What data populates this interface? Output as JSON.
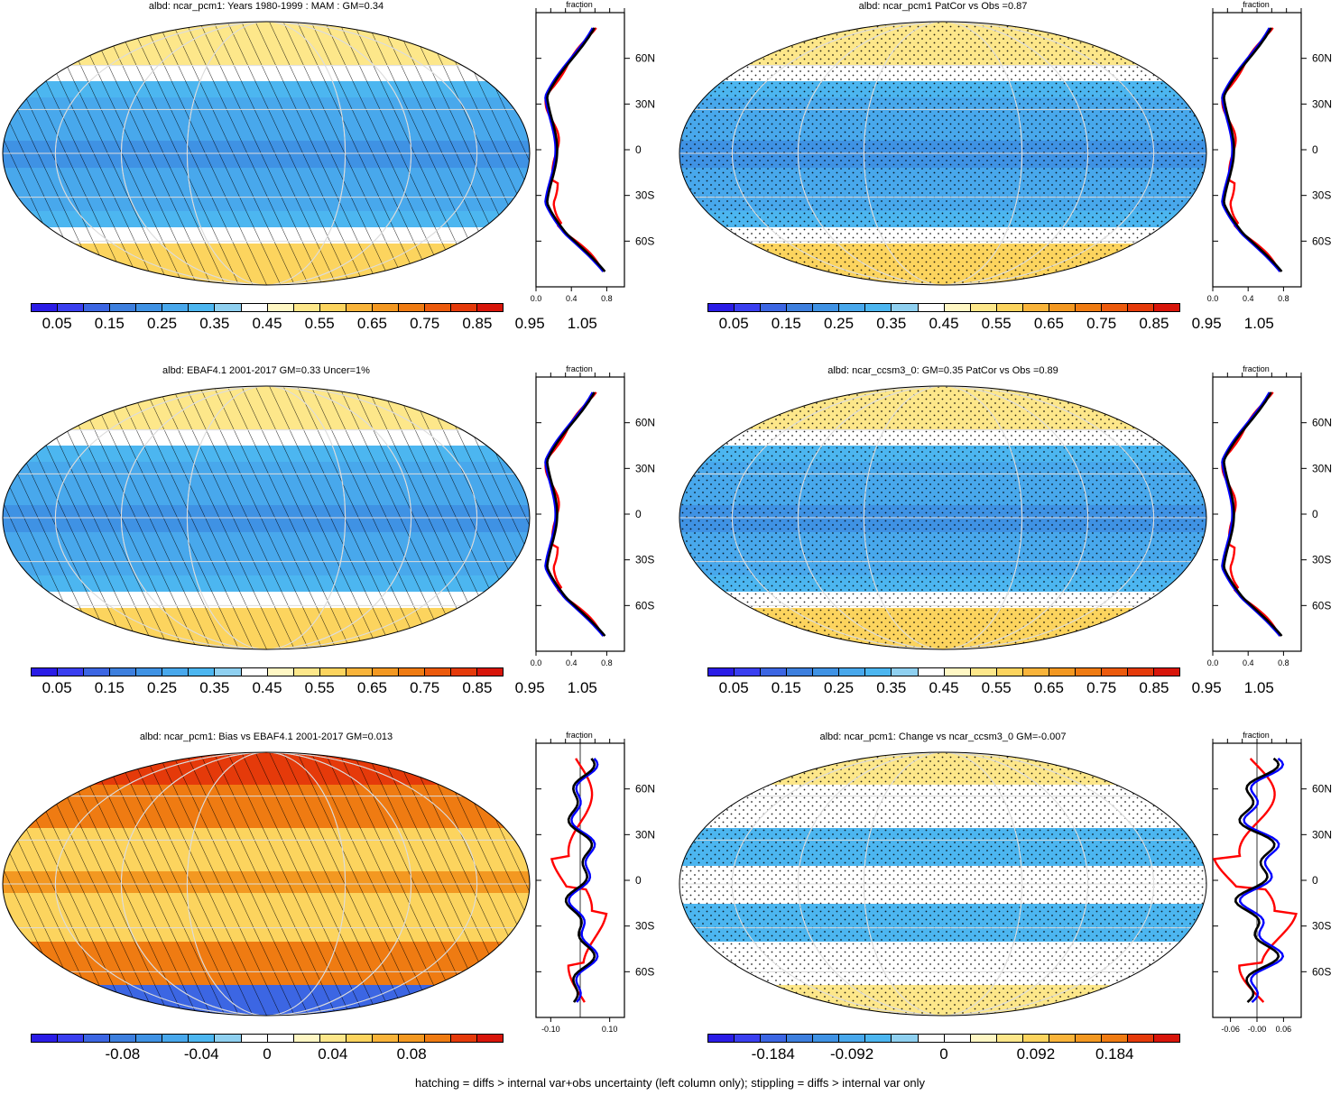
{
  "footer": "hatching = diffs > internal var+obs uncertainty (left column only); stippling = diffs > internal var only",
  "lat_labels": [
    "60N",
    "30N",
    "0",
    "30S",
    "60S"
  ],
  "zonal_axis_title": "fraction",
  "colors": {
    "seq": [
      "#2a1ce6",
      "#3a3ff0",
      "#3c66e3",
      "#3d7fde",
      "#3f92e4",
      "#48a8ec",
      "#4cb6f0",
      "#8fd0f0",
      "#ffffff",
      "#fff7c4",
      "#fde78a",
      "#fcd45e",
      "#f9b43a",
      "#f39821",
      "#ef7b12",
      "#ec5a0c",
      "#e53a0a",
      "#d8150a"
    ],
    "div": [
      "#2a1ce6",
      "#3a3ff0",
      "#3c66e3",
      "#3d7fde",
      "#3f92e4",
      "#48a8ec",
      "#4cb6f0",
      "#8fd0f0",
      "#ffffff",
      "#ffffff",
      "#fff7c4",
      "#fde78a",
      "#fcd45e",
      "#f9b43a",
      "#f39821",
      "#ef7b12",
      "#e53a0a",
      "#d8150a"
    ],
    "model": "#000000",
    "obs": "#ff0000",
    "other": "#0000ff"
  },
  "panels": [
    {
      "id": "p1",
      "title": "albd: ncar_pcm1: Years 1980-1999 : MAM : GM=0.34",
      "scale": "seq",
      "pattern": "hatch",
      "colorbar_labels": [
        "0.05",
        "0.15",
        "0.25",
        "0.35",
        "0.45",
        "0.55",
        "0.65",
        "0.75",
        "0.85",
        "0.95",
        "1.05"
      ],
      "zonal_ticks": [
        "0.0",
        "0.4",
        "0.8"
      ],
      "zonal_range": [
        0,
        1
      ],
      "zonal_ref": null
    },
    {
      "id": "p2",
      "title": "albd: ncar_pcm1 PatCor vs Obs =0.87",
      "scale": "seq",
      "pattern": "stipple",
      "colorbar_labels": [
        "0.05",
        "0.15",
        "0.25",
        "0.35",
        "0.45",
        "0.55",
        "0.65",
        "0.75",
        "0.85",
        "0.95",
        "1.05"
      ],
      "zonal_ticks": [
        "0.0",
        "0.4",
        "0.8"
      ],
      "zonal_range": [
        0,
        1
      ],
      "zonal_ref": null
    },
    {
      "id": "p3",
      "title": "albd: EBAF4.1 2001-2017 GM=0.33 Uncer=1%",
      "scale": "seq",
      "pattern": "hatch",
      "colorbar_labels": [
        "0.05",
        "0.15",
        "0.25",
        "0.35",
        "0.45",
        "0.55",
        "0.65",
        "0.75",
        "0.85",
        "0.95",
        "1.05"
      ],
      "zonal_ticks": [
        "0.0",
        "0.4",
        "0.8"
      ],
      "zonal_range": [
        0,
        1
      ],
      "zonal_ref": null
    },
    {
      "id": "p4",
      "title": "albd: ncar_ccsm3_0: GM=0.35 PatCor vs Obs =0.89",
      "scale": "seq",
      "pattern": "stipple",
      "colorbar_labels": [
        "0.05",
        "0.15",
        "0.25",
        "0.35",
        "0.45",
        "0.55",
        "0.65",
        "0.75",
        "0.85",
        "0.95",
        "1.05"
      ],
      "zonal_ticks": [
        "0.0",
        "0.4",
        "0.8"
      ],
      "zonal_range": [
        0,
        1
      ],
      "zonal_ref": null
    },
    {
      "id": "p5",
      "title": "albd: ncar_pcm1: Bias vs EBAF4.1 2001-2017 GM=0.013",
      "scale": "div",
      "pattern": "hatch",
      "colorbar_labels": [
        "-0.08",
        "-0.04",
        "0",
        "0.04",
        "0.08"
      ],
      "zonal_ticks": [
        "-0.10",
        "0.10"
      ],
      "zonal_range": [
        -0.15,
        0.15
      ],
      "zonal_ref": 0
    },
    {
      "id": "p6",
      "title": "albd: ncar_pcm1: Change vs ncar_ccsm3_0 GM=-0.007",
      "scale": "div",
      "pattern": "stipple",
      "colorbar_labels": [
        "-0.184",
        "-0.092",
        "0",
        "0.092",
        "0.184"
      ],
      "zonal_ticks": [
        "-0.06",
        "-0.00",
        "0.06"
      ],
      "zonal_range": [
        -0.1,
        0.1
      ],
      "zonal_ref": 0
    }
  ]
}
